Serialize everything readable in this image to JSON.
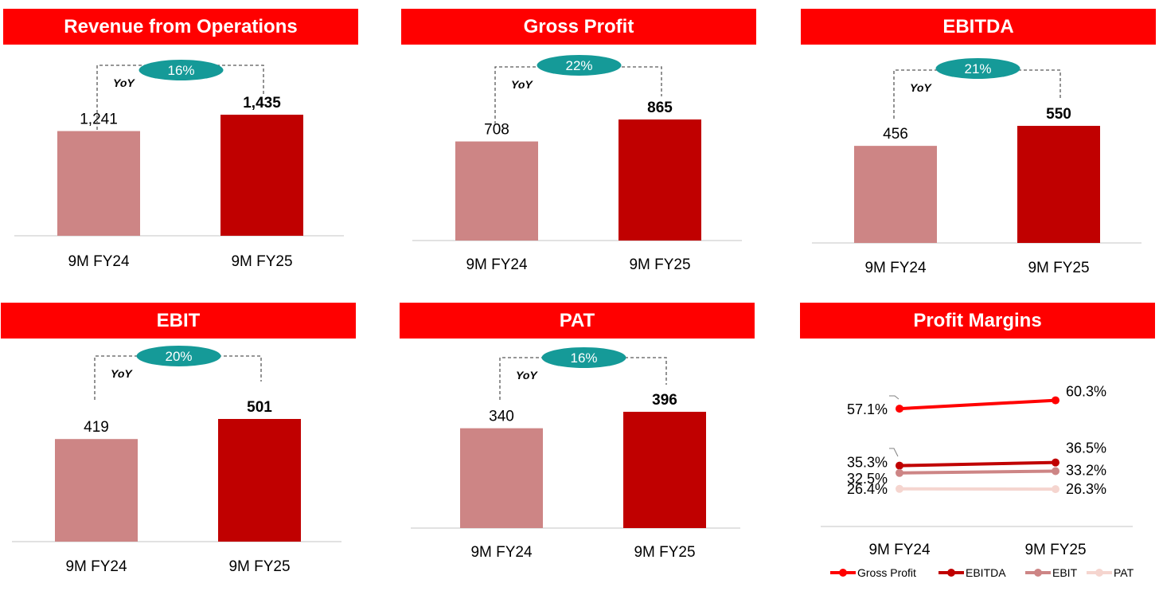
{
  "colors": {
    "header_bg": "#ff0000",
    "bar_prev": "#cd8585",
    "bar_curr": "#c00000",
    "badge": "#159a98",
    "gross_profit_line": "#ff0000",
    "ebitda_line": "#c00000",
    "ebit_line": "#cd8585",
    "pat_line": "#f5d5cf"
  },
  "chart_data": [
    {
      "type": "bar",
      "title": "Revenue from Operations",
      "categories": [
        "9M FY24",
        "9M FY25"
      ],
      "values": [
        1241,
        1435
      ],
      "value_labels": [
        "1,241",
        "1,435"
      ],
      "yoy_label": "YoY",
      "growth_label": "16%"
    },
    {
      "type": "bar",
      "title": "Gross Profit",
      "categories": [
        "9M FY24",
        "9M FY25"
      ],
      "values": [
        708,
        865
      ],
      "value_labels": [
        "708",
        "865"
      ],
      "yoy_label": "YoY",
      "growth_label": "22%"
    },
    {
      "type": "bar",
      "title": "EBITDA",
      "categories": [
        "9M FY24",
        "9M FY25"
      ],
      "values": [
        456,
        550
      ],
      "value_labels": [
        "456",
        "550"
      ],
      "yoy_label": "YoY",
      "growth_label": "21%"
    },
    {
      "type": "bar",
      "title": "EBIT",
      "categories": [
        "9M FY24",
        "9M FY25"
      ],
      "values": [
        419,
        501
      ],
      "value_labels": [
        "419",
        "501"
      ],
      "yoy_label": "YoY",
      "growth_label": "20%"
    },
    {
      "type": "bar",
      "title": "PAT",
      "categories": [
        "9M FY24",
        "9M FY25"
      ],
      "values": [
        340,
        396
      ],
      "value_labels": [
        "340",
        "396"
      ],
      "yoy_label": "YoY",
      "growth_label": "16%"
    },
    {
      "type": "line",
      "title": "Profit Margins",
      "categories": [
        "9M FY24",
        "9M FY25"
      ],
      "legend": "bottom",
      "series": [
        {
          "name": "Gross Profit",
          "values": [
            57.1,
            60.3
          ],
          "value_labels": [
            "57.1%",
            "60.3%"
          ],
          "color": "#ff0000"
        },
        {
          "name": "EBITDA",
          "values": [
            35.3,
            36.5
          ],
          "value_labels": [
            "35.3%",
            "36.5%"
          ],
          "color": "#c00000"
        },
        {
          "name": "EBIT",
          "values": [
            32.5,
            33.2
          ],
          "value_labels": [
            "32.5%",
            "33.2%"
          ],
          "color": "#cd8585"
        },
        {
          "name": "PAT",
          "values": [
            26.4,
            26.3
          ],
          "value_labels": [
            "26.4%",
            "26.3%"
          ],
          "color": "#f5d5cf"
        }
      ]
    }
  ]
}
